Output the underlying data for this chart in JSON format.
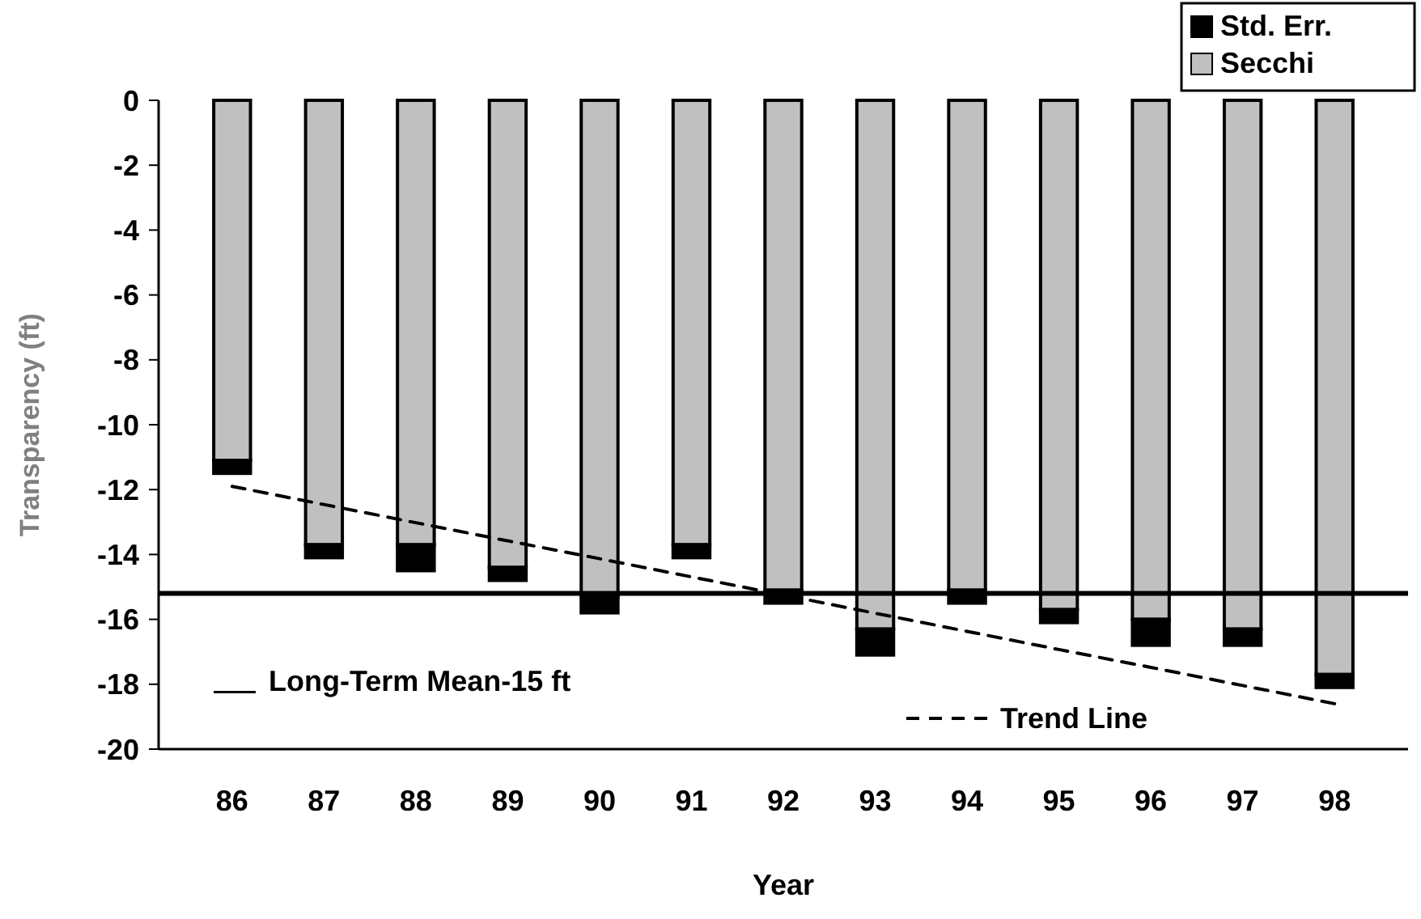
{
  "chart_data": {
    "type": "bar",
    "stacked": true,
    "xlabel": "Year",
    "ylabel": "Transparency (ft)",
    "categories": [
      "86",
      "87",
      "88",
      "89",
      "90",
      "91",
      "92",
      "93",
      "94",
      "95",
      "96",
      "97",
      "98"
    ],
    "series": [
      {
        "name": "Secchi",
        "color": "#c0c0c0",
        "values": [
          -11.1,
          -13.7,
          -13.7,
          -14.4,
          -15.3,
          -13.7,
          -15.1,
          -16.3,
          -15.1,
          -15.7,
          -16.0,
          -16.3,
          -17.7
        ]
      },
      {
        "name": "Std. Err.",
        "color": "#000000",
        "values": [
          -0.4,
          -0.4,
          -0.8,
          -0.4,
          -0.5,
          -0.4,
          -0.4,
          -0.8,
          -0.4,
          -0.4,
          -0.8,
          -0.5,
          -0.4
        ]
      },
      {
        "name": "Trend Line",
        "type": "line",
        "color": "#000000",
        "line_style": "dashed",
        "values": [
          -11.9,
          -12.46,
          -13.02,
          -13.58,
          -14.13,
          -14.69,
          -15.25,
          -15.81,
          -16.37,
          -16.93,
          -17.48,
          -18.04,
          -18.6
        ]
      }
    ],
    "ref_lines": [
      {
        "axis": "y",
        "value": -15.2,
        "label": "Long-Term Mean-15 ft",
        "color": "#000000",
        "line_style": "solid"
      }
    ],
    "ylim": [
      -20,
      0
    ],
    "yticks": [
      0,
      -2,
      -4,
      -6,
      -8,
      -10,
      -12,
      -14,
      -16,
      -18,
      -20
    ],
    "grid": false,
    "legend": "top right"
  }
}
